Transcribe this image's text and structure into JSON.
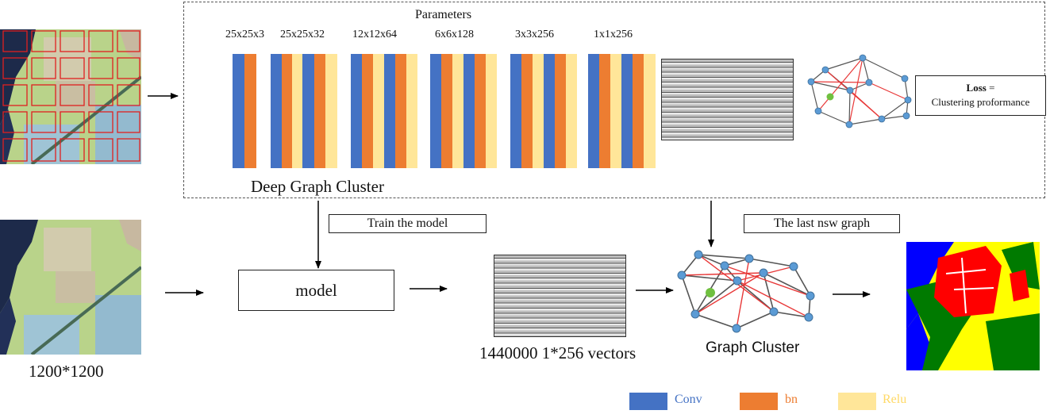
{
  "diagram": {
    "parameters_title": "Parameters",
    "layer_params": [
      "25x25x3",
      "25x25x32",
      "12x12x64",
      "6x6x128",
      "3x3x256",
      "1x1x256"
    ],
    "deep_graph_cluster": "Deep Graph Cluster",
    "loss_bold": "Loss",
    "loss_eq": " =",
    "loss_desc": "Clustering proformance",
    "train_label": "Train the model",
    "model_label": "model",
    "last_graph_label": "The last nsw graph",
    "vectors_label": "1440000 1*256 vectors",
    "graph_cluster_label": "Graph Cluster",
    "image_size_label": "1200*1200"
  },
  "legend": [
    {
      "label": "Conv",
      "color": "#4472C4"
    },
    {
      "label": "bn",
      "color": "#ED7D31"
    },
    {
      "label": "Relu",
      "color": "#FFE699"
    }
  ]
}
